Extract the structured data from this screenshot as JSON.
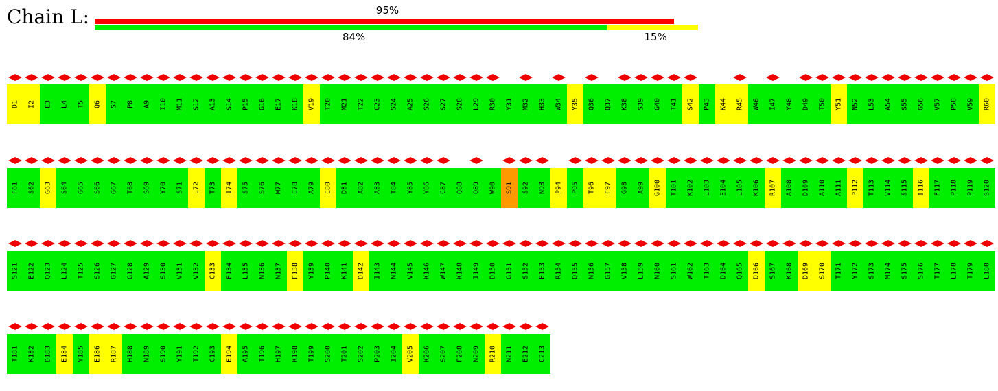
{
  "title": "Chain L:",
  "summary": {
    "top_bar": {
      "label": "95%",
      "fraction": 0.95,
      "color": "#ff0000"
    },
    "bottom_bar": {
      "segments": [
        {
          "label": "84%",
          "fraction": 0.84,
          "color": "#00ee00"
        },
        {
          "label": "15%",
          "fraction": 0.15,
          "color": "#ffff00"
        }
      ]
    }
  },
  "colors": {
    "good": "#00ee00",
    "warn": "#ffff00",
    "bad": "#ff9900",
    "diamond": "#ee0000"
  },
  "rows": [
    [
      {
        "id": "D1",
        "q": "y",
        "d": 1
      },
      {
        "id": "I2",
        "q": "y",
        "d": 1
      },
      {
        "id": "E3",
        "q": "g",
        "d": 1
      },
      {
        "id": "L4",
        "q": "g",
        "d": 1
      },
      {
        "id": "T5",
        "q": "g",
        "d": 1
      },
      {
        "id": "Q6",
        "q": "y",
        "d": 1
      },
      {
        "id": "S7",
        "q": "g",
        "d": 1
      },
      {
        "id": "P8",
        "q": "g",
        "d": 1
      },
      {
        "id": "A9",
        "q": "g",
        "d": 1
      },
      {
        "id": "I10",
        "q": "g",
        "d": 1
      },
      {
        "id": "M11",
        "q": "g",
        "d": 1
      },
      {
        "id": "S12",
        "q": "g",
        "d": 1
      },
      {
        "id": "A13",
        "q": "g",
        "d": 1
      },
      {
        "id": "S14",
        "q": "g",
        "d": 1
      },
      {
        "id": "P15",
        "q": "g",
        "d": 1
      },
      {
        "id": "G16",
        "q": "g",
        "d": 1
      },
      {
        "id": "E17",
        "q": "g",
        "d": 1
      },
      {
        "id": "K18",
        "q": "g",
        "d": 1
      },
      {
        "id": "V19",
        "q": "y",
        "d": 1
      },
      {
        "id": "T20",
        "q": "g",
        "d": 1
      },
      {
        "id": "M21",
        "q": "g",
        "d": 1
      },
      {
        "id": "T22",
        "q": "g",
        "d": 1
      },
      {
        "id": "C23",
        "q": "g",
        "d": 1
      },
      {
        "id": "S24",
        "q": "g",
        "d": 1
      },
      {
        "id": "A25",
        "q": "g",
        "d": 1
      },
      {
        "id": "S26",
        "q": "g",
        "d": 1
      },
      {
        "id": "S27",
        "q": "g",
        "d": 1
      },
      {
        "id": "S28",
        "q": "g",
        "d": 1
      },
      {
        "id": "L29",
        "q": "g",
        "d": 1
      },
      {
        "id": "R30",
        "q": "g",
        "d": 1
      },
      {
        "id": "Y31",
        "q": "g",
        "d": 0
      },
      {
        "id": "M32",
        "q": "g",
        "d": 1
      },
      {
        "id": "H33",
        "q": "g",
        "d": 0
      },
      {
        "id": "W34",
        "q": "g",
        "d": 1
      },
      {
        "id": "Y35",
        "q": "y",
        "d": 0
      },
      {
        "id": "Q36",
        "q": "g",
        "d": 1
      },
      {
        "id": "Q37",
        "q": "g",
        "d": 0
      },
      {
        "id": "K38",
        "q": "g",
        "d": 1
      },
      {
        "id": "S39",
        "q": "g",
        "d": 1
      },
      {
        "id": "G40",
        "q": "g",
        "d": 1
      },
      {
        "id": "T41",
        "q": "g",
        "d": 1
      },
      {
        "id": "S42",
        "q": "y",
        "d": 1
      },
      {
        "id": "P43",
        "q": "g",
        "d": 0
      },
      {
        "id": "K44",
        "q": "y",
        "d": 0
      },
      {
        "id": "R45",
        "q": "y",
        "d": 1
      },
      {
        "id": "W46",
        "q": "g",
        "d": 0
      },
      {
        "id": "I47",
        "q": "g",
        "d": 1
      },
      {
        "id": "Y48",
        "q": "g",
        "d": 0
      },
      {
        "id": "D49",
        "q": "g",
        "d": 1
      },
      {
        "id": "T50",
        "q": "g",
        "d": 1
      },
      {
        "id": "Y51",
        "q": "y",
        "d": 1
      },
      {
        "id": "N52",
        "q": "g",
        "d": 1
      },
      {
        "id": "L53",
        "q": "g",
        "d": 1
      },
      {
        "id": "A54",
        "q": "g",
        "d": 1
      },
      {
        "id": "S55",
        "q": "g",
        "d": 1
      },
      {
        "id": "G56",
        "q": "g",
        "d": 1
      },
      {
        "id": "V57",
        "q": "g",
        "d": 1
      },
      {
        "id": "P58",
        "q": "g",
        "d": 1
      },
      {
        "id": "V59",
        "q": "g",
        "d": 1
      },
      {
        "id": "R60",
        "q": "y",
        "d": 1
      }
    ],
    [
      {
        "id": "F61",
        "q": "g",
        "d": 1
      },
      {
        "id": "S62",
        "q": "g",
        "d": 1
      },
      {
        "id": "G63",
        "q": "y",
        "d": 1
      },
      {
        "id": "S64",
        "q": "g",
        "d": 1
      },
      {
        "id": "G65",
        "q": "g",
        "d": 1
      },
      {
        "id": "S66",
        "q": "g",
        "d": 1
      },
      {
        "id": "G67",
        "q": "g",
        "d": 1
      },
      {
        "id": "T68",
        "q": "g",
        "d": 1
      },
      {
        "id": "S69",
        "q": "g",
        "d": 1
      },
      {
        "id": "Y70",
        "q": "g",
        "d": 1
      },
      {
        "id": "S71",
        "q": "g",
        "d": 1
      },
      {
        "id": "L72",
        "q": "y",
        "d": 1
      },
      {
        "id": "T73",
        "q": "g",
        "d": 1
      },
      {
        "id": "I74",
        "q": "y",
        "d": 1
      },
      {
        "id": "S75",
        "q": "g",
        "d": 1
      },
      {
        "id": "S76",
        "q": "g",
        "d": 1
      },
      {
        "id": "M77",
        "q": "g",
        "d": 1
      },
      {
        "id": "E78",
        "q": "g",
        "d": 1
      },
      {
        "id": "A79",
        "q": "g",
        "d": 1
      },
      {
        "id": "E80",
        "q": "y",
        "d": 1
      },
      {
        "id": "D81",
        "q": "g",
        "d": 1
      },
      {
        "id": "A82",
        "q": "g",
        "d": 1
      },
      {
        "id": "A83",
        "q": "g",
        "d": 1
      },
      {
        "id": "T84",
        "q": "g",
        "d": 1
      },
      {
        "id": "Y85",
        "q": "g",
        "d": 1
      },
      {
        "id": "Y86",
        "q": "g",
        "d": 1
      },
      {
        "id": "C87",
        "q": "g",
        "d": 1
      },
      {
        "id": "Q88",
        "q": "g",
        "d": 0
      },
      {
        "id": "Q89",
        "q": "g",
        "d": 1
      },
      {
        "id": "W90",
        "q": "g",
        "d": 0
      },
      {
        "id": "S91",
        "q": "o",
        "d": 1
      },
      {
        "id": "S92",
        "q": "g",
        "d": 1
      },
      {
        "id": "N93",
        "q": "g",
        "d": 1
      },
      {
        "id": "P94",
        "q": "y",
        "d": 0
      },
      {
        "id": "P95",
        "q": "g",
        "d": 1
      },
      {
        "id": "T96",
        "q": "y",
        "d": 1
      },
      {
        "id": "F97",
        "q": "y",
        "d": 1
      },
      {
        "id": "G98",
        "q": "g",
        "d": 1
      },
      {
        "id": "A99",
        "q": "g",
        "d": 1
      },
      {
        "id": "G100",
        "q": "y",
        "d": 1
      },
      {
        "id": "T101",
        "q": "g",
        "d": 1
      },
      {
        "id": "K102",
        "q": "g",
        "d": 1
      },
      {
        "id": "L103",
        "q": "g",
        "d": 1
      },
      {
        "id": "E104",
        "q": "g",
        "d": 1
      },
      {
        "id": "L105",
        "q": "g",
        "d": 1
      },
      {
        "id": "K106",
        "q": "g",
        "d": 1
      },
      {
        "id": "R107",
        "q": "y",
        "d": 1
      },
      {
        "id": "A108",
        "q": "g",
        "d": 1
      },
      {
        "id": "D109",
        "q": "g",
        "d": 1
      },
      {
        "id": "A110",
        "q": "g",
        "d": 1
      },
      {
        "id": "A111",
        "q": "g",
        "d": 1
      },
      {
        "id": "P112",
        "q": "y",
        "d": 1
      },
      {
        "id": "T113",
        "q": "g",
        "d": 1
      },
      {
        "id": "V114",
        "q": "g",
        "d": 1
      },
      {
        "id": "S115",
        "q": "g",
        "d": 1
      },
      {
        "id": "I116",
        "q": "y",
        "d": 1
      },
      {
        "id": "F117",
        "q": "g",
        "d": 1
      },
      {
        "id": "P118",
        "q": "g",
        "d": 1
      },
      {
        "id": "P119",
        "q": "g",
        "d": 1
      },
      {
        "id": "S120",
        "q": "g",
        "d": 1
      }
    ],
    [
      {
        "id": "S121",
        "q": "g",
        "d": 1
      },
      {
        "id": "E122",
        "q": "g",
        "d": 1
      },
      {
        "id": "Q123",
        "q": "g",
        "d": 1
      },
      {
        "id": "L124",
        "q": "g",
        "d": 1
      },
      {
        "id": "T125",
        "q": "g",
        "d": 1
      },
      {
        "id": "S126",
        "q": "g",
        "d": 1
      },
      {
        "id": "G127",
        "q": "g",
        "d": 1
      },
      {
        "id": "G128",
        "q": "g",
        "d": 1
      },
      {
        "id": "A129",
        "q": "g",
        "d": 1
      },
      {
        "id": "S130",
        "q": "g",
        "d": 1
      },
      {
        "id": "V131",
        "q": "g",
        "d": 1
      },
      {
        "id": "V132",
        "q": "g",
        "d": 1
      },
      {
        "id": "C133",
        "q": "y",
        "d": 1
      },
      {
        "id": "F134",
        "q": "g",
        "d": 1
      },
      {
        "id": "L135",
        "q": "g",
        "d": 1
      },
      {
        "id": "N136",
        "q": "g",
        "d": 1
      },
      {
        "id": "N137",
        "q": "g",
        "d": 1
      },
      {
        "id": "F138",
        "q": "y",
        "d": 1
      },
      {
        "id": "Y139",
        "q": "g",
        "d": 1
      },
      {
        "id": "P140",
        "q": "g",
        "d": 1
      },
      {
        "id": "K141",
        "q": "g",
        "d": 1
      },
      {
        "id": "D142",
        "q": "y",
        "d": 1
      },
      {
        "id": "I143",
        "q": "g",
        "d": 1
      },
      {
        "id": "N144",
        "q": "g",
        "d": 1
      },
      {
        "id": "V145",
        "q": "g",
        "d": 1
      },
      {
        "id": "K146",
        "q": "g",
        "d": 1
      },
      {
        "id": "W147",
        "q": "g",
        "d": 1
      },
      {
        "id": "K148",
        "q": "g",
        "d": 1
      },
      {
        "id": "I149",
        "q": "g",
        "d": 1
      },
      {
        "id": "D150",
        "q": "g",
        "d": 1
      },
      {
        "id": "G151",
        "q": "g",
        "d": 1
      },
      {
        "id": "S152",
        "q": "g",
        "d": 1
      },
      {
        "id": "E153",
        "q": "g",
        "d": 1
      },
      {
        "id": "R154",
        "q": "g",
        "d": 1
      },
      {
        "id": "Q155",
        "q": "g",
        "d": 1
      },
      {
        "id": "N156",
        "q": "g",
        "d": 1
      },
      {
        "id": "G157",
        "q": "g",
        "d": 1
      },
      {
        "id": "V158",
        "q": "g",
        "d": 1
      },
      {
        "id": "L159",
        "q": "g",
        "d": 1
      },
      {
        "id": "N160",
        "q": "g",
        "d": 1
      },
      {
        "id": "S161",
        "q": "g",
        "d": 1
      },
      {
        "id": "W162",
        "q": "g",
        "d": 1
      },
      {
        "id": "T163",
        "q": "g",
        "d": 1
      },
      {
        "id": "D164",
        "q": "g",
        "d": 1
      },
      {
        "id": "Q165",
        "q": "g",
        "d": 1
      },
      {
        "id": "D166",
        "q": "y",
        "d": 1
      },
      {
        "id": "S167",
        "q": "g",
        "d": 1
      },
      {
        "id": "K168",
        "q": "g",
        "d": 1
      },
      {
        "id": "D169",
        "q": "y",
        "d": 1
      },
      {
        "id": "S170",
        "q": "y",
        "d": 1
      },
      {
        "id": "T171",
        "q": "g",
        "d": 1
      },
      {
        "id": "Y172",
        "q": "g",
        "d": 1
      },
      {
        "id": "S173",
        "q": "g",
        "d": 1
      },
      {
        "id": "M174",
        "q": "g",
        "d": 1
      },
      {
        "id": "S175",
        "q": "g",
        "d": 1
      },
      {
        "id": "S176",
        "q": "g",
        "d": 1
      },
      {
        "id": "T177",
        "q": "g",
        "d": 1
      },
      {
        "id": "L178",
        "q": "g",
        "d": 1
      },
      {
        "id": "T179",
        "q": "g",
        "d": 1
      },
      {
        "id": "L180",
        "q": "g",
        "d": 1
      }
    ],
    [
      {
        "id": "T181",
        "q": "g",
        "d": 1
      },
      {
        "id": "K182",
        "q": "g",
        "d": 1
      },
      {
        "id": "D183",
        "q": "g",
        "d": 1
      },
      {
        "id": "E184",
        "q": "y",
        "d": 1
      },
      {
        "id": "Y185",
        "q": "g",
        "d": 1
      },
      {
        "id": "E186",
        "q": "y",
        "d": 1
      },
      {
        "id": "R187",
        "q": "y",
        "d": 1
      },
      {
        "id": "H188",
        "q": "g",
        "d": 1
      },
      {
        "id": "N189",
        "q": "g",
        "d": 1
      },
      {
        "id": "S190",
        "q": "g",
        "d": 1
      },
      {
        "id": "Y191",
        "q": "g",
        "d": 1
      },
      {
        "id": "T192",
        "q": "g",
        "d": 1
      },
      {
        "id": "C193",
        "q": "g",
        "d": 1
      },
      {
        "id": "E194",
        "q": "y",
        "d": 1
      },
      {
        "id": "A195",
        "q": "g",
        "d": 1
      },
      {
        "id": "T196",
        "q": "g",
        "d": 1
      },
      {
        "id": "H197",
        "q": "g",
        "d": 1
      },
      {
        "id": "K198",
        "q": "g",
        "d": 1
      },
      {
        "id": "T199",
        "q": "g",
        "d": 1
      },
      {
        "id": "S200",
        "q": "g",
        "d": 1
      },
      {
        "id": "T201",
        "q": "g",
        "d": 1
      },
      {
        "id": "S202",
        "q": "g",
        "d": 1
      },
      {
        "id": "P203",
        "q": "g",
        "d": 1
      },
      {
        "id": "I204",
        "q": "g",
        "d": 1
      },
      {
        "id": "V205",
        "q": "y",
        "d": 1
      },
      {
        "id": "K206",
        "q": "g",
        "d": 1
      },
      {
        "id": "S207",
        "q": "g",
        "d": 1
      },
      {
        "id": "F208",
        "q": "g",
        "d": 1
      },
      {
        "id": "N209",
        "q": "g",
        "d": 1
      },
      {
        "id": "R210",
        "q": "y",
        "d": 1
      },
      {
        "id": "N211",
        "q": "g",
        "d": 1
      },
      {
        "id": "E212",
        "q": "g",
        "d": 1
      },
      {
        "id": "C213",
        "q": "g",
        "d": 1
      }
    ]
  ]
}
